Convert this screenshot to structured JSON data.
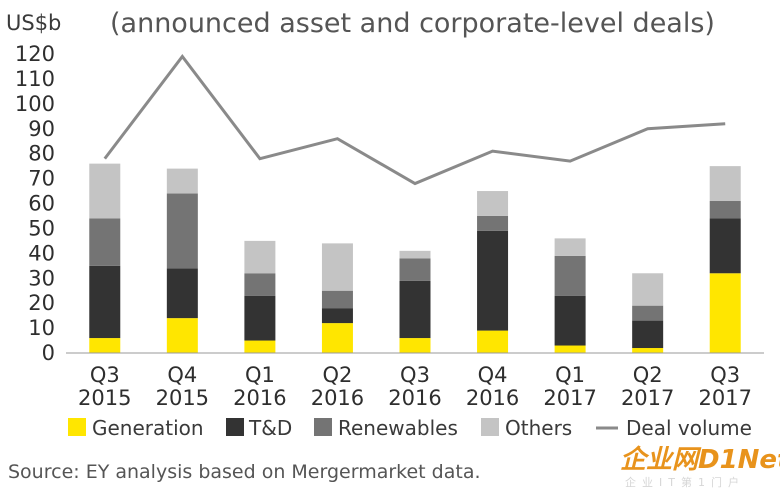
{
  "chart_data": {
    "type": "bar",
    "stacked": true,
    "subtitle": "(announced asset and corporate-level deals)",
    "unit_label": "US$b",
    "ylim": [
      0,
      120
    ],
    "yticks": [
      0,
      10,
      20,
      30,
      40,
      50,
      60,
      70,
      80,
      90,
      100,
      110,
      120
    ],
    "grid": false,
    "categories": [
      [
        "Q3",
        "2015"
      ],
      [
        "Q4",
        "2015"
      ],
      [
        "Q1",
        "2016"
      ],
      [
        "Q2",
        "2016"
      ],
      [
        "Q3",
        "2016"
      ],
      [
        "Q4",
        "2016"
      ],
      [
        "Q1",
        "2017"
      ],
      [
        "Q2",
        "2017"
      ],
      [
        "Q3",
        "2017"
      ]
    ],
    "series": [
      {
        "name": "Generation",
        "color": "#ffe600",
        "values": [
          6,
          14,
          5,
          12,
          6,
          9,
          3,
          2,
          32
        ]
      },
      {
        "name": "T&D",
        "color": "#333333",
        "values": [
          29,
          20,
          18,
          6,
          23,
          40,
          20,
          11,
          22
        ]
      },
      {
        "name": "Renewables",
        "color": "#747474",
        "values": [
          19,
          30,
          9,
          7,
          9,
          6,
          16,
          6,
          7
        ]
      },
      {
        "name": "Others",
        "color": "#c4c4c4",
        "values": [
          22,
          10,
          13,
          19,
          3,
          10,
          7,
          13,
          14
        ]
      }
    ],
    "line_series": {
      "name": "Deal volume",
      "color": "#8a8a8a",
      "values": [
        78,
        119,
        78,
        86,
        68,
        81,
        77,
        90,
        92
      ]
    },
    "legend_position": "bottom"
  },
  "source": "Source: EY analysis based on Mergermarket data.",
  "watermark": {
    "brand": "企业网D1Net",
    "tagline": "企业IT第1门户"
  }
}
